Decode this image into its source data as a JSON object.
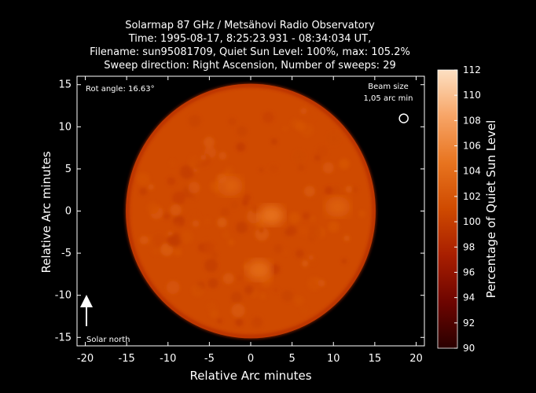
{
  "chart_data": {
    "type": "heatmap",
    "title_lines": [
      "Solarmap 87 GHz / Metsähovi Radio Observatory",
      "Time: 1995-08-17,  8:25:23.931 - 08:34:034 UT,",
      "Filename: sun95081709, Quiet Sun Level: 100%, max: 105.2%",
      "Sweep direction: Right Ascension, Number of sweeps: 29"
    ],
    "xlabel": "Relative Arc minutes",
    "ylabel": "Relative Arc minutes",
    "xlim": [
      -21,
      21
    ],
    "ylim": [
      -16,
      16
    ],
    "xticks": [
      -20,
      -15,
      -10,
      -5,
      0,
      5,
      10,
      15,
      20
    ],
    "yticks": [
      -15,
      -10,
      -5,
      0,
      5,
      10,
      15
    ],
    "colorbar": {
      "label": "Percentage of Quiet Sun Level",
      "range": [
        90,
        112
      ],
      "ticks": [
        90,
        92,
        94,
        96,
        98,
        100,
        102,
        104,
        106,
        108,
        110,
        112
      ],
      "colors": [
        "#2a0000",
        "#6e0500",
        "#a81e00",
        "#cf4a00",
        "#e8741f",
        "#f7a466",
        "#fde0c2"
      ]
    },
    "disk": {
      "center": [
        0,
        0
      ],
      "radius_arcmin": 15.1,
      "typical_level": 101,
      "max_level": 105.2,
      "bright_regions": [
        {
          "name": "central",
          "x": 2.5,
          "y": -0.5,
          "level": 104.5
        },
        {
          "name": "south",
          "x": 1.0,
          "y": -7.0,
          "level": 104.0
        },
        {
          "name": "north-west",
          "x": -2.5,
          "y": 3.0,
          "level": 103.0
        },
        {
          "name": "east",
          "x": 10.5,
          "y": 0.5,
          "level": 103.0
        }
      ]
    },
    "annotations": {
      "rot_angle": "Rot angle: 16.63°",
      "beam_size_line1": "Beam size",
      "beam_size_line2": "1,05 arc min",
      "solar_north": "Solar north"
    },
    "beam_marker": {
      "x": 18.5,
      "y": 11.0
    }
  }
}
